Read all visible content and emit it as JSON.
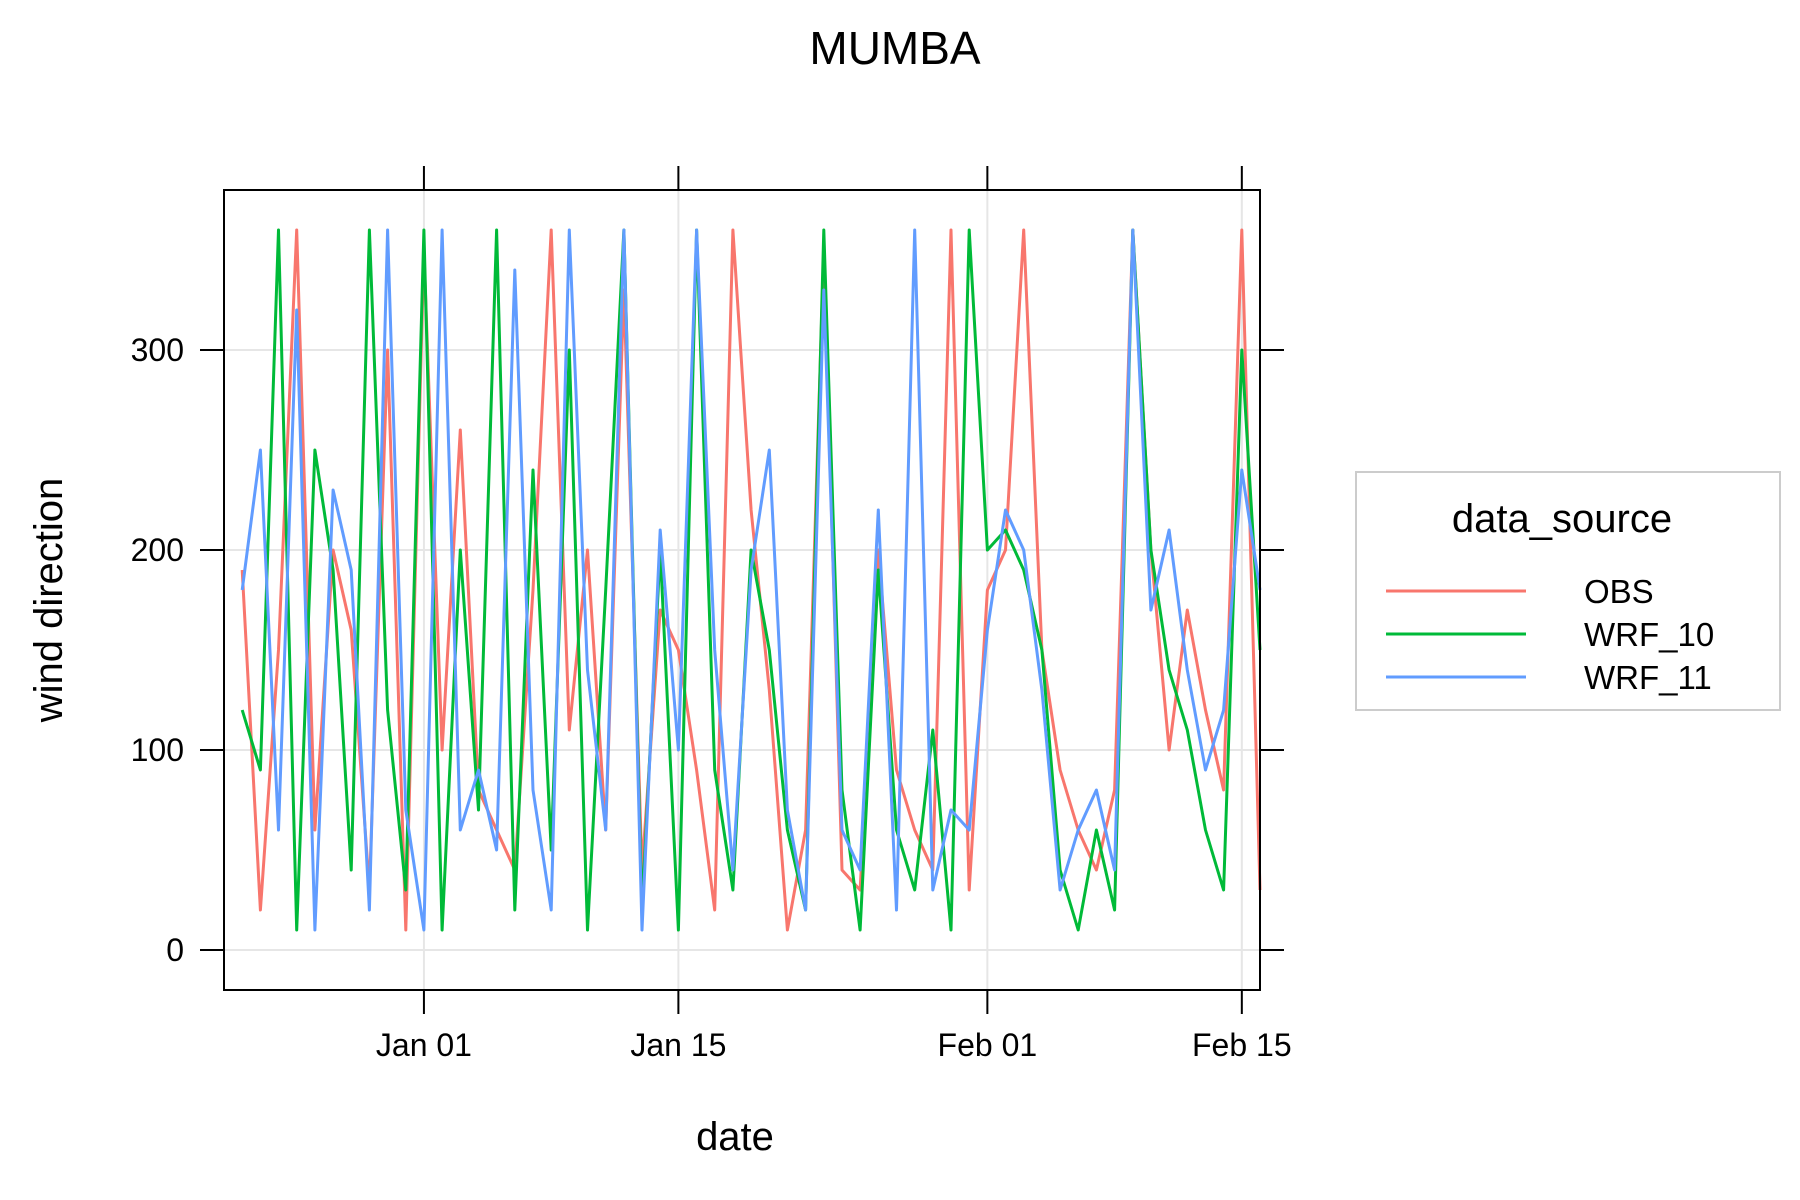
{
  "chart_data": {
    "type": "line",
    "title": "MUMBA",
    "xlabel": "date",
    "ylabel": "wind direction",
    "x_range": [
      "2012-12-21",
      "2013-02-16"
    ],
    "x_ticks": [
      {
        "label": "Jan 01",
        "date": "2013-01-01"
      },
      {
        "label": "Jan 15",
        "date": "2013-01-15"
      },
      {
        "label": "Feb 01",
        "date": "2013-02-01"
      },
      {
        "label": "Feb 15",
        "date": "2013-02-15"
      }
    ],
    "ylim": [
      -20,
      380
    ],
    "y_ticks": [
      0,
      100,
      200,
      300
    ],
    "grid": true,
    "legend": {
      "title": "data_source",
      "placement": "right",
      "entries": [
        "OBS",
        "WRF_10",
        "WRF_11"
      ]
    },
    "colors": {
      "OBS": "#F8766D",
      "WRF_10": "#00BA38",
      "WRF_11": "#619CFF",
      "grid": "#E6E6E6",
      "axis": "#000000"
    },
    "series": [
      {
        "name": "OBS",
        "x": [
          "2012-12-22",
          "2012-12-23",
          "2012-12-24",
          "2012-12-25",
          "2012-12-26",
          "2012-12-27",
          "2012-12-28",
          "2012-12-29",
          "2012-12-30",
          "2012-12-31",
          "2013-01-01",
          "2013-01-02",
          "2013-01-03",
          "2013-01-04",
          "2013-01-05",
          "2013-01-06",
          "2013-01-07",
          "2013-01-08",
          "2013-01-09",
          "2013-01-10",
          "2013-01-11",
          "2013-01-12",
          "2013-01-13",
          "2013-01-14",
          "2013-01-15",
          "2013-01-16",
          "2013-01-17",
          "2013-01-18",
          "2013-01-19",
          "2013-01-20",
          "2013-01-21",
          "2013-01-22",
          "2013-01-23",
          "2013-01-24",
          "2013-01-25",
          "2013-01-26",
          "2013-01-27",
          "2013-01-28",
          "2013-01-29",
          "2013-01-30",
          "2013-01-31",
          "2013-02-01",
          "2013-02-02",
          "2013-02-03",
          "2013-02-04",
          "2013-02-05",
          "2013-02-06",
          "2013-02-07",
          "2013-02-08",
          "2013-02-09",
          "2013-02-10",
          "2013-02-11",
          "2013-02-12",
          "2013-02-13",
          "2013-02-14",
          "2013-02-15",
          "2013-02-16"
        ],
        "values": [
          190,
          20,
          150,
          360,
          60,
          200,
          160,
          30,
          300,
          10,
          350,
          100,
          260,
          80,
          60,
          40,
          180,
          360,
          110,
          200,
          60,
          330,
          40,
          170,
          150,
          90,
          20,
          360,
          220,
          130,
          10,
          60,
          350,
          40,
          30,
          200,
          90,
          60,
          40,
          360,
          30,
          180,
          200,
          360,
          150,
          90,
          60,
          40,
          80,
          360,
          200,
          100,
          170,
          120,
          80,
          360,
          30
        ]
      },
      {
        "name": "WRF_10",
        "x": [
          "2012-12-22",
          "2012-12-23",
          "2012-12-24",
          "2012-12-25",
          "2012-12-26",
          "2012-12-27",
          "2012-12-28",
          "2012-12-29",
          "2012-12-30",
          "2012-12-31",
          "2013-01-01",
          "2013-01-02",
          "2013-01-03",
          "2013-01-04",
          "2013-01-05",
          "2013-01-06",
          "2013-01-07",
          "2013-01-08",
          "2013-01-09",
          "2013-01-10",
          "2013-01-11",
          "2013-01-12",
          "2013-01-13",
          "2013-01-14",
          "2013-01-15",
          "2013-01-16",
          "2013-01-17",
          "2013-01-18",
          "2013-01-19",
          "2013-01-20",
          "2013-01-21",
          "2013-01-22",
          "2013-01-23",
          "2013-01-24",
          "2013-01-25",
          "2013-01-26",
          "2013-01-27",
          "2013-01-28",
          "2013-01-29",
          "2013-01-30",
          "2013-01-31",
          "2013-02-01",
          "2013-02-02",
          "2013-02-03",
          "2013-02-04",
          "2013-02-05",
          "2013-02-06",
          "2013-02-07",
          "2013-02-08",
          "2013-02-09",
          "2013-02-10",
          "2013-02-11",
          "2013-02-12",
          "2013-02-13",
          "2013-02-14",
          "2013-02-15",
          "2013-02-16"
        ],
        "values": [
          120,
          90,
          360,
          10,
          250,
          190,
          40,
          360,
          120,
          30,
          360,
          10,
          200,
          70,
          360,
          20,
          240,
          50,
          300,
          10,
          180,
          360,
          20,
          200,
          10,
          360,
          90,
          30,
          200,
          150,
          60,
          20,
          360,
          80,
          10,
          190,
          60,
          30,
          110,
          10,
          360,
          200,
          210,
          190,
          150,
          40,
          10,
          60,
          20,
          360,
          200,
          140,
          110,
          60,
          30,
          300,
          150
        ]
      },
      {
        "name": "WRF_11",
        "x": [
          "2012-12-22",
          "2012-12-23",
          "2012-12-24",
          "2012-12-25",
          "2012-12-26",
          "2012-12-27",
          "2012-12-28",
          "2012-12-29",
          "2012-12-30",
          "2012-12-31",
          "2013-01-01",
          "2013-01-02",
          "2013-01-03",
          "2013-01-04",
          "2013-01-05",
          "2013-01-06",
          "2013-01-07",
          "2013-01-08",
          "2013-01-09",
          "2013-01-10",
          "2013-01-11",
          "2013-01-12",
          "2013-01-13",
          "2013-01-14",
          "2013-01-15",
          "2013-01-16",
          "2013-01-17",
          "2013-01-18",
          "2013-01-19",
          "2013-01-20",
          "2013-01-21",
          "2013-01-22",
          "2013-01-23",
          "2013-01-24",
          "2013-01-25",
          "2013-01-26",
          "2013-01-27",
          "2013-01-28",
          "2013-01-29",
          "2013-01-30",
          "2013-01-31",
          "2013-02-01",
          "2013-02-02",
          "2013-02-03",
          "2013-02-04",
          "2013-02-05",
          "2013-02-06",
          "2013-02-07",
          "2013-02-08",
          "2013-02-09",
          "2013-02-10",
          "2013-02-11",
          "2013-02-12",
          "2013-02-13",
          "2013-02-14",
          "2013-02-15",
          "2013-02-16"
        ],
        "values": [
          180,
          250,
          60,
          320,
          10,
          230,
          190,
          20,
          360,
          70,
          10,
          360,
          60,
          90,
          50,
          340,
          80,
          20,
          360,
          140,
          60,
          360,
          10,
          210,
          100,
          360,
          150,
          40,
          190,
          250,
          70,
          20,
          330,
          60,
          40,
          220,
          20,
          360,
          30,
          70,
          60,
          160,
          220,
          200,
          130,
          30,
          60,
          80,
          40,
          360,
          170,
          210,
          140,
          90,
          120,
          240,
          180
        ]
      }
    ]
  }
}
